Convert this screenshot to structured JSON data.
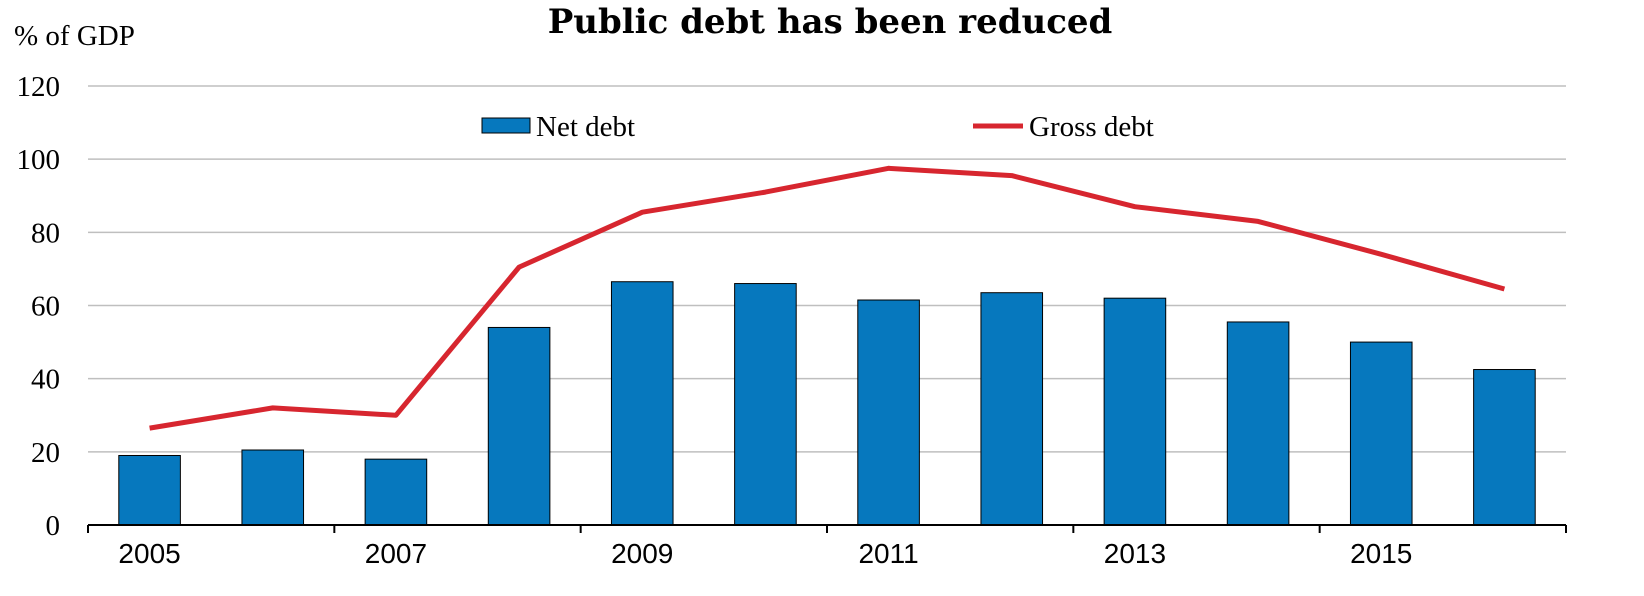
{
  "colors": {
    "net_debt": "#0678be",
    "gross_debt": "#d7262f",
    "grid": "#bfbfbf",
    "axis": "#000000"
  },
  "chart_data": {
    "type": "bar",
    "title": "Public debt has been reduced",
    "unit_label": "% of GDP",
    "ylim": [
      0,
      120
    ],
    "yticks": [
      "0",
      "20",
      "40",
      "60",
      "80",
      "100",
      "120"
    ],
    "x": [
      2005,
      2006,
      2007,
      2008,
      2009,
      2010,
      2011,
      2012,
      2013,
      2014,
      2015,
      2016
    ],
    "xtick_labels": [
      "2005",
      "2007",
      "2009",
      "2011",
      "2013",
      "2015"
    ],
    "grid": true,
    "legend_position": "top",
    "series": [
      {
        "name": "Net debt",
        "type": "bar",
        "values": [
          19,
          20.5,
          18,
          54,
          66.5,
          66,
          61.5,
          63.5,
          62,
          55.5,
          50,
          42.5
        ]
      },
      {
        "name": "Gross debt",
        "type": "line",
        "values": [
          26.5,
          32,
          30,
          70.5,
          85.5,
          91,
          97.5,
          95.5,
          87,
          83,
          74,
          64.5
        ]
      }
    ]
  }
}
